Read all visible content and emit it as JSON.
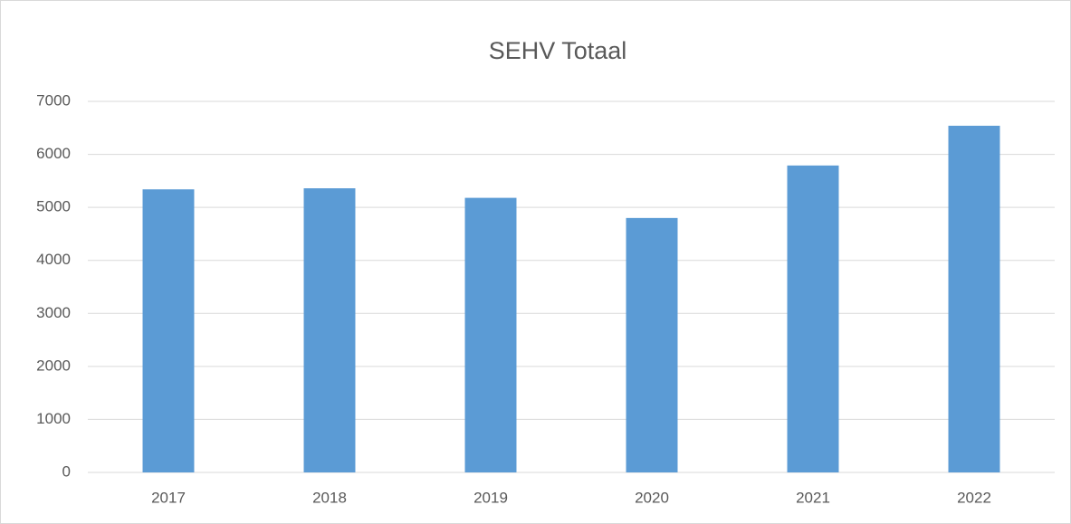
{
  "chart_data": {
    "type": "bar",
    "title": "SEHV Totaal",
    "categories": [
      "2017",
      "2018",
      "2019",
      "2020",
      "2021",
      "2022"
    ],
    "values": [
      5340,
      5360,
      5180,
      4800,
      5790,
      6540
    ],
    "color": "#5b9bd5",
    "ylim": [
      0,
      7000
    ],
    "yticks": [
      0,
      1000,
      2000,
      3000,
      4000,
      5000,
      6000,
      7000
    ],
    "grid": true
  }
}
